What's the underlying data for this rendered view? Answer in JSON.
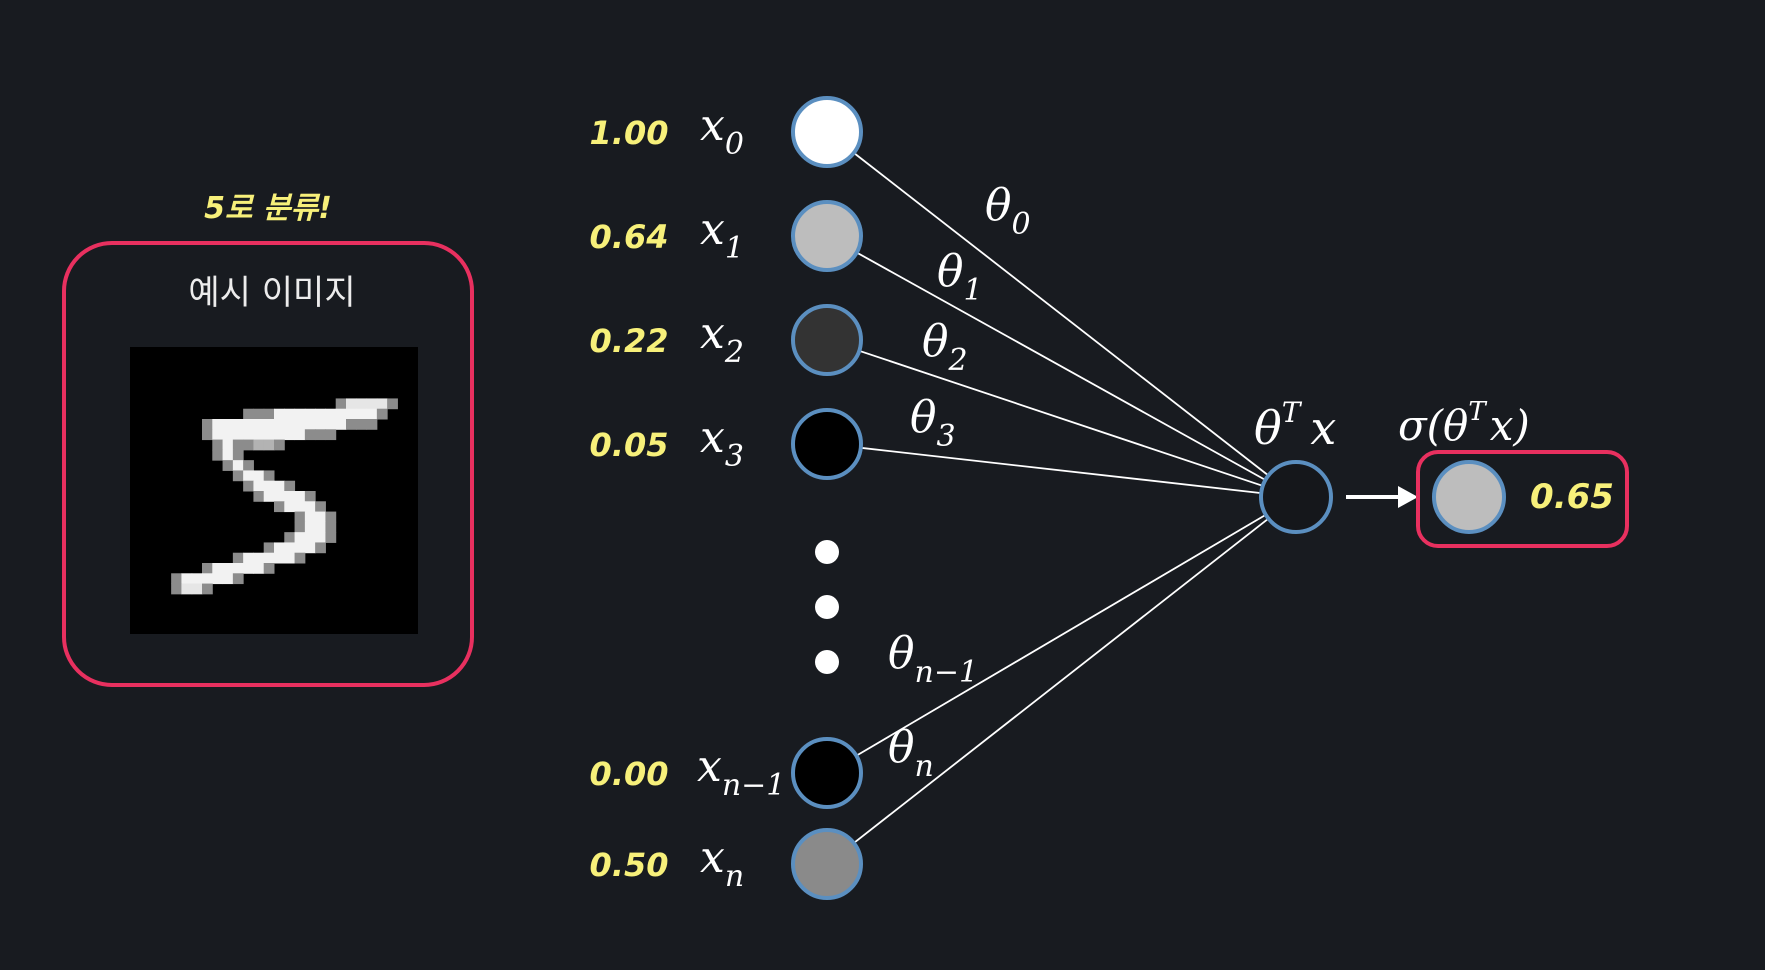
{
  "colors": {
    "background": "#181b20",
    "highlight_box": "#e8305f",
    "node_stroke": "#5b8fc0",
    "value_text": "#f7f07a",
    "line": "#ffffff"
  },
  "example": {
    "classified_label": "5로 분류!",
    "title": "예시 이미지",
    "digit": "5"
  },
  "inputs": [
    {
      "value": "1.00",
      "var": "x",
      "sub": "0",
      "gray": 1.0,
      "fill": "#ffffff"
    },
    {
      "value": "0.64",
      "var": "x",
      "sub": "1",
      "gray": 0.75,
      "fill": "#bdbdbd"
    },
    {
      "value": "0.22",
      "var": "x",
      "sub": "2",
      "gray": 0.2,
      "fill": "#333333"
    },
    {
      "value": "0.05",
      "var": "x",
      "sub": "3",
      "gray": 0.0,
      "fill": "#000000"
    },
    {
      "value": "0.00",
      "var": "x",
      "sub": "n−1",
      "gray": 0.0,
      "fill": "#000000"
    },
    {
      "value": "0.50",
      "var": "x",
      "sub": "n",
      "gray": 0.55,
      "fill": "#8a8a8a"
    }
  ],
  "weights": [
    {
      "var": "θ",
      "sub": "0"
    },
    {
      "var": "θ",
      "sub": "1"
    },
    {
      "var": "θ",
      "sub": "2"
    },
    {
      "var": "θ",
      "sub": "3"
    },
    {
      "var": "θ",
      "sub": "n−1"
    },
    {
      "var": "θ",
      "sub": "n"
    }
  ],
  "sum_node": {
    "var": "θ",
    "sup": "T",
    "tail": "x"
  },
  "output": {
    "prefix": "σ(θ",
    "sup": "T",
    "tail": "x)",
    "value": "0.65",
    "fill": "#bdbdbd"
  }
}
